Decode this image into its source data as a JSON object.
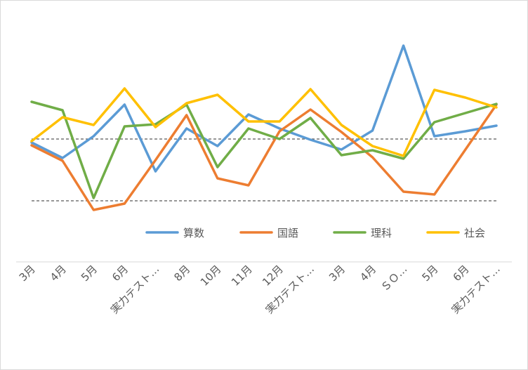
{
  "chart_data": {
    "type": "line",
    "categories": [
      "3月",
      "4月",
      "5月",
      "6月",
      "実力テスト…",
      "8月",
      "10月",
      "11月",
      "12月",
      "実力テスト…",
      "3月",
      "4月",
      "ＳＯ…",
      "5月",
      "6月",
      "実力テスト…"
    ],
    "series": [
      {
        "name": "算数",
        "color": "#5b9bd5",
        "values": [
          202,
          224,
          193,
          148,
          243,
          182,
          207,
          162,
          182,
          198,
          212,
          185,
          64,
          193,
          186,
          178
        ]
      },
      {
        "name": "国語",
        "color": "#ed7d31",
        "values": [
          206,
          228,
          298,
          289,
          227,
          163,
          253,
          263,
          186,
          155,
          187,
          223,
          272,
          276,
          212,
          148
        ]
      },
      {
        "name": "理科",
        "color": "#70ad47",
        "values": [
          144,
          156,
          281,
          179,
          176,
          148,
          237,
          182,
          197,
          167,
          220,
          213,
          225,
          173,
          160,
          147
        ]
      },
      {
        "name": "社会",
        "color": "#ffc000",
        "values": [
          200,
          166,
          177,
          125,
          180,
          146,
          134,
          172,
          172,
          126,
          177,
          207,
          221,
          127,
          138,
          152
        ]
      }
    ],
    "value_axis": "inverted",
    "reference_lines": [
      197,
      285
    ],
    "ylim": [
      25,
      310
    ],
    "gridlines": "dashed reference lines only",
    "legend_position": "bottom, inside plot"
  }
}
